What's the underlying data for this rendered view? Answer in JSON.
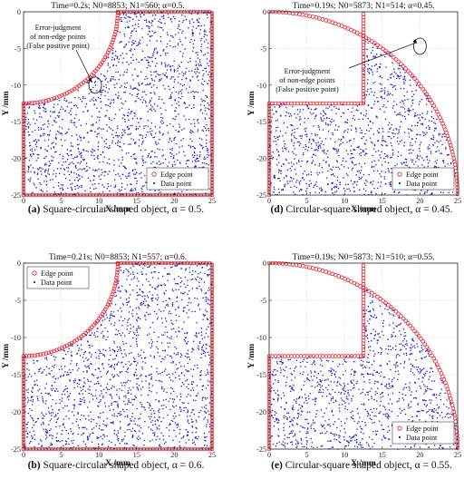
{
  "colors": {
    "edge": "#e8202a",
    "data": "#1a1ad0",
    "axis": "#222222",
    "grid": "#cfcfcf"
  },
  "panels": [
    {
      "id": "a",
      "title": "Time=0.2s; N0=8853; N1=560; α=0.5.",
      "caption_label": "(a)",
      "caption_text": "Square-circular shaped object, α = 0.5.",
      "shape": "square-circular",
      "legend_pos": "bottom-right",
      "annotation": {
        "lines": [
          "Error-judgment",
          "of non-edge points",
          "(False positive point)"
        ],
        "target": [
          9.5,
          -10.0
        ]
      }
    },
    {
      "id": "d",
      "title": "Time=0.19s; N0=5873; N1=514; α=0.45.",
      "caption_label": "(d)",
      "caption_text": "Circular-square shaped object, α = 0.45.",
      "shape": "circular-square",
      "legend_pos": "bottom-right",
      "annotation": {
        "lines": [
          "Error-judgment",
          "of non-edge points",
          "(False positive point)"
        ],
        "target": [
          20.0,
          -4.7
        ]
      }
    },
    {
      "id": "b",
      "title": "Time=0.21s; N0=8853; N1=557; α=0.6.",
      "caption_label": "(b)",
      "caption_text": "Square-circular shaped object, α = 0.6.",
      "shape": "square-circular",
      "legend_pos": "top-left",
      "annotation": null
    },
    {
      "id": "e",
      "title": "Time=0.19s; N0=5873; N1=510; α=0.55.",
      "caption_label": "(e)",
      "caption_text": "Circular-square shaped object, α = 0.55.",
      "shape": "circular-square",
      "legend_pos": "bottom-right",
      "annotation": null
    }
  ],
  "legend": {
    "edge_label": "Edge point",
    "data_label": "Data point"
  },
  "chart_data": [
    {
      "type": "scatter",
      "title": "Time=0.2s; N0=8853; N1=560; α=0.5.",
      "xlabel": "X /mm",
      "ylabel": "Y /mm",
      "xlim": [
        0,
        25
      ],
      "ylim": [
        -25,
        0
      ],
      "xticks": [
        0,
        5,
        10,
        15,
        20,
        25
      ],
      "yticks": [
        -25,
        -20,
        -15,
        -10,
        -5,
        0
      ],
      "grid": true,
      "series": [
        {
          "name": "Edge point"
        },
        {
          "name": "Data point"
        }
      ]
    },
    {
      "type": "scatter",
      "title": "Time=0.19s; N0=5873; N1=514; α=0.45.",
      "xlabel": "X /mm",
      "ylabel": "Y /mm",
      "xlim": [
        0,
        25
      ],
      "ylim": [
        -25,
        0
      ],
      "xticks": [
        0,
        5,
        10,
        15,
        20,
        25
      ],
      "yticks": [
        -25,
        -20,
        -15,
        -10,
        -5,
        0
      ],
      "grid": true,
      "series": [
        {
          "name": "Edge point"
        },
        {
          "name": "Data point"
        }
      ]
    },
    {
      "type": "scatter",
      "title": "Time=0.21s; N0=8853; N1=557; α=0.6.",
      "xlabel": "X /mm",
      "ylabel": "Y /mm",
      "xlim": [
        0,
        25
      ],
      "ylim": [
        -25,
        0
      ],
      "xticks": [
        0,
        5,
        10,
        15,
        20,
        25
      ],
      "yticks": [
        -25,
        -20,
        -15,
        -10,
        -5,
        0
      ],
      "grid": true,
      "series": [
        {
          "name": "Edge point"
        },
        {
          "name": "Data point"
        }
      ]
    },
    {
      "type": "scatter",
      "title": "Time=0.19s; N0=5873; N1=510; α=0.55.",
      "xlabel": "X /mm",
      "ylabel": "Y /mm",
      "xlim": [
        0,
        25
      ],
      "ylim": [
        -25,
        0
      ],
      "xticks": [
        0,
        5,
        10,
        15,
        20,
        25
      ],
      "yticks": [
        -25,
        -20,
        -15,
        -10,
        -5,
        0
      ],
      "grid": true,
      "series": [
        {
          "name": "Edge point"
        },
        {
          "name": "Data point"
        }
      ]
    }
  ]
}
